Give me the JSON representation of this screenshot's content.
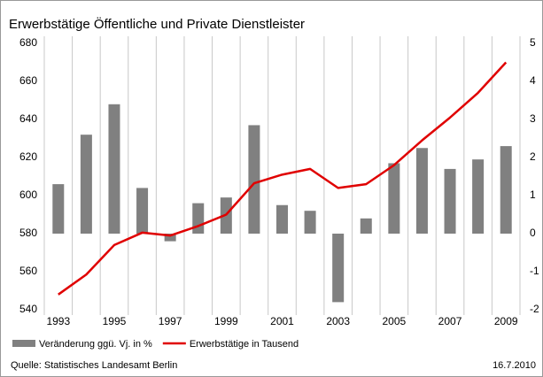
{
  "chart_data": {
    "type": "bar",
    "title": "Erwerbstätige Öffentliche und Private Dienstleister",
    "categories": [
      "1993",
      "1994",
      "1995",
      "1996",
      "1997",
      "1998",
      "1999",
      "2000",
      "2001",
      "2002",
      "2003",
      "2004",
      "2005",
      "2006",
      "2007",
      "2008",
      "2009"
    ],
    "xtick_labels": [
      "1993",
      null,
      "1995",
      null,
      "1997",
      null,
      "1999",
      null,
      "2001",
      null,
      "2003",
      null,
      "2005",
      null,
      "2007",
      null,
      "2009"
    ],
    "series": [
      {
        "name": "Veränderung ggü. Vj. in %",
        "type": "bar",
        "axis": "y2",
        "color": "#808080",
        "values": [
          1.3,
          2.6,
          3.4,
          1.2,
          -0.2,
          0.8,
          0.95,
          2.85,
          0.75,
          0.6,
          -1.8,
          0.4,
          1.85,
          2.25,
          1.7,
          1.95,
          2.3
        ]
      },
      {
        "name": "Erwerbstätige in Tausend",
        "type": "line",
        "color": "#e00000",
        "values": [
          548,
          558.5,
          574,
          580.5,
          579,
          584,
          590,
          606.5,
          611,
          614,
          604,
          606,
          616,
          629,
          641,
          654,
          670
        ]
      }
    ],
    "ylim": [
      540,
      680
    ],
    "yticks": [
      540,
      560,
      580,
      600,
      620,
      640,
      660,
      680
    ],
    "y2lim": [
      -2,
      5
    ],
    "y2ticks": [
      -2,
      -1,
      0,
      1,
      2,
      3,
      4,
      5
    ],
    "source": "Quelle: Statistisches Landesamt Berlin",
    "date": "16.7.2010"
  }
}
